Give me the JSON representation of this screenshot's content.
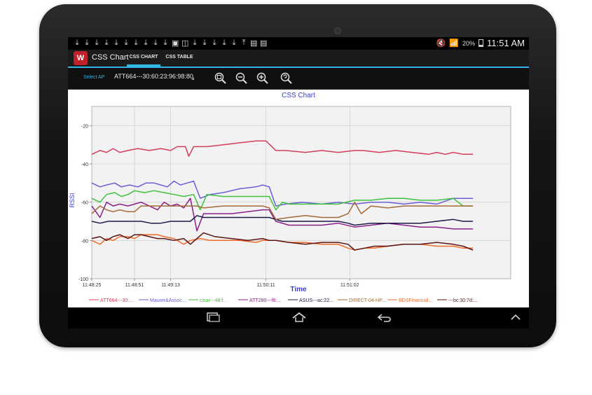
{
  "status_bar": {
    "notification_icons": [
      "download-icon",
      "download-icon",
      "download-icon",
      "download-icon",
      "download-icon",
      "download-icon",
      "download-icon",
      "download-icon",
      "download-icon",
      "download-icon",
      "image-icon",
      "screenshot-icon",
      "download-icon",
      "download-icon",
      "download-icon",
      "download-icon",
      "download-icon",
      "upload-icon",
      "briefcase-icon",
      "briefcase-icon"
    ],
    "battery_percent": "20%",
    "time": "11:51 AM"
  },
  "action_bar": {
    "app_title": "CSS Chart",
    "tabs": [
      {
        "label": "CSS CHART",
        "active": true
      },
      {
        "label": "CSS TABLE",
        "active": false
      }
    ],
    "accent_color": "#33b5e5"
  },
  "toolbar": {
    "select_label": "Select AP",
    "selected_ap": "ATT664---30:60:23:96:98:80",
    "zoom_buttons": [
      "zoom-fit-icon",
      "zoom-out-icon",
      "zoom-in-icon",
      "zoom-reset-icon"
    ]
  },
  "chart_data": {
    "type": "line",
    "title": "CSS Chart",
    "xlabel": "Time",
    "ylabel": "RSSI",
    "ylim": [
      -100,
      -10
    ],
    "yticks": [
      -20,
      -40,
      -60,
      -80,
      -100
    ],
    "xlim": [
      0,
      255
    ],
    "xticks": [
      {
        "label": "11:48:25",
        "x": 0
      },
      {
        "label": "11:48:51",
        "x": 26
      },
      {
        "label": "11:49:13",
        "x": 48
      },
      {
        "label": "11:50:11",
        "x": 106
      },
      {
        "label": "11:51:02",
        "x": 157
      }
    ],
    "grid": true,
    "legend_position": "bottom",
    "series": [
      {
        "name": "ATT664---30:...",
        "color": "#d43d5e",
        "points": [
          [
            0,
            -35
          ],
          [
            5,
            -33
          ],
          [
            9,
            -34
          ],
          [
            13,
            -32
          ],
          [
            17,
            -34
          ],
          [
            22,
            -33
          ],
          [
            28,
            -32
          ],
          [
            35,
            -33
          ],
          [
            42,
            -32
          ],
          [
            48,
            -33
          ],
          [
            52,
            -31
          ],
          [
            57,
            -31
          ],
          [
            59,
            -36
          ],
          [
            62,
            -31
          ],
          [
            70,
            -31
          ],
          [
            80,
            -30
          ],
          [
            90,
            -29
          ],
          [
            100,
            -28
          ],
          [
            106,
            -28
          ],
          [
            112,
            -33
          ],
          [
            118,
            -33
          ],
          [
            130,
            -34
          ],
          [
            140,
            -33
          ],
          [
            150,
            -34
          ],
          [
            160,
            -33
          ],
          [
            165,
            -33
          ],
          [
            175,
            -34
          ],
          [
            185,
            -33
          ],
          [
            195,
            -34
          ],
          [
            205,
            -35
          ],
          [
            210,
            -34
          ],
          [
            215,
            -35
          ],
          [
            220,
            -34
          ],
          [
            226,
            -35
          ],
          [
            232,
            -35
          ]
        ]
      },
      {
        "name": "Maurer&Assoc...",
        "color": "#6a5fd8",
        "points": [
          [
            0,
            -50
          ],
          [
            5,
            -52
          ],
          [
            9,
            -51
          ],
          [
            14,
            -50
          ],
          [
            18,
            -52
          ],
          [
            23,
            -51
          ],
          [
            28,
            -52
          ],
          [
            33,
            -50
          ],
          [
            38,
            -50
          ],
          [
            42,
            -51
          ],
          [
            46,
            -52
          ],
          [
            50,
            -49
          ],
          [
            54,
            -51
          ],
          [
            58,
            -50
          ],
          [
            62,
            -49
          ],
          [
            66,
            -58
          ],
          [
            72,
            -56
          ],
          [
            80,
            -55
          ],
          [
            90,
            -53
          ],
          [
            100,
            -52
          ],
          [
            104,
            -51
          ],
          [
            108,
            -52
          ],
          [
            112,
            -62
          ],
          [
            118,
            -61
          ],
          [
            128,
            -60
          ],
          [
            140,
            -61
          ],
          [
            150,
            -60
          ],
          [
            160,
            -61
          ],
          [
            170,
            -60
          ],
          [
            180,
            -60
          ],
          [
            190,
            -61
          ],
          [
            200,
            -60
          ],
          [
            210,
            -61
          ],
          [
            220,
            -58
          ],
          [
            228,
            -58
          ],
          [
            232,
            -58
          ]
        ]
      },
      {
        "name": "cisar---48:f...",
        "color": "#3ec23e",
        "points": [
          [
            0,
            -58
          ],
          [
            5,
            -60
          ],
          [
            9,
            -56
          ],
          [
            14,
            -55
          ],
          [
            18,
            -57
          ],
          [
            22,
            -56
          ],
          [
            26,
            -54
          ],
          [
            32,
            -55
          ],
          [
            38,
            -54
          ],
          [
            44,
            -55
          ],
          [
            50,
            -56
          ],
          [
            56,
            -57
          ],
          [
            62,
            -56
          ],
          [
            66,
            -64
          ],
          [
            70,
            -56
          ],
          [
            80,
            -57
          ],
          [
            90,
            -57
          ],
          [
            100,
            -57
          ],
          [
            104,
            -57
          ],
          [
            108,
            -57
          ],
          [
            112,
            -64
          ],
          [
            116,
            -60
          ],
          [
            120,
            -61
          ],
          [
            130,
            -61
          ],
          [
            140,
            -61
          ],
          [
            150,
            -61
          ],
          [
            160,
            -59
          ],
          [
            170,
            -59
          ],
          [
            180,
            -58
          ],
          [
            190,
            -58
          ],
          [
            200,
            -59
          ],
          [
            210,
            -59
          ],
          [
            220,
            -58
          ],
          [
            226,
            -62
          ],
          [
            232,
            -62
          ]
        ]
      },
      {
        "name": "ATT280---f8:...",
        "color": "#8a1f8a",
        "points": [
          [
            0,
            -62
          ],
          [
            5,
            -68
          ],
          [
            9,
            -60
          ],
          [
            13,
            -62
          ],
          [
            17,
            -61
          ],
          [
            22,
            -62
          ],
          [
            26,
            -61
          ],
          [
            30,
            -60
          ],
          [
            35,
            -62
          ],
          [
            40,
            -64
          ],
          [
            44,
            -60
          ],
          [
            48,
            -62
          ],
          [
            52,
            -61
          ],
          [
            56,
            -63
          ],
          [
            60,
            -58
          ],
          [
            64,
            -75
          ],
          [
            68,
            -66
          ],
          [
            75,
            -66
          ],
          [
            85,
            -66
          ],
          [
            95,
            -65
          ],
          [
            104,
            -64
          ],
          [
            108,
            -64
          ],
          [
            112,
            -70
          ],
          [
            120,
            -72
          ],
          [
            130,
            -72
          ],
          [
            140,
            -72
          ],
          [
            150,
            -71
          ],
          [
            160,
            -73
          ],
          [
            170,
            -72
          ],
          [
            180,
            -71
          ],
          [
            190,
            -72
          ],
          [
            200,
            -73
          ],
          [
            210,
            -73
          ],
          [
            220,
            -74
          ],
          [
            228,
            -74
          ],
          [
            232,
            -74
          ]
        ]
      },
      {
        "name": "ASUS---ac:22...",
        "color": "#1b1b4a",
        "points": [
          [
            0,
            -70
          ],
          [
            5,
            -71
          ],
          [
            10,
            -70
          ],
          [
            16,
            -70
          ],
          [
            22,
            -70
          ],
          [
            30,
            -70
          ],
          [
            36,
            -71
          ],
          [
            42,
            -71
          ],
          [
            48,
            -70
          ],
          [
            54,
            -70
          ],
          [
            60,
            -70
          ],
          [
            64,
            -67
          ],
          [
            68,
            -68
          ],
          [
            80,
            -68
          ],
          [
            90,
            -68
          ],
          [
            100,
            -68
          ],
          [
            104,
            -68
          ],
          [
            108,
            -68
          ],
          [
            112,
            -69
          ],
          [
            116,
            -70
          ],
          [
            124,
            -70
          ],
          [
            134,
            -70
          ],
          [
            144,
            -70
          ],
          [
            150,
            -70
          ],
          [
            156,
            -71
          ],
          [
            160,
            -72
          ],
          [
            170,
            -71
          ],
          [
            180,
            -71
          ],
          [
            190,
            -71
          ],
          [
            200,
            -71
          ],
          [
            210,
            -70
          ],
          [
            220,
            -69
          ],
          [
            226,
            -70
          ],
          [
            232,
            -70
          ]
        ]
      },
      {
        "name": "DIRECT-04-HP...",
        "color": "#a46a3a",
        "points": [
          [
            0,
            -66
          ],
          [
            5,
            -62
          ],
          [
            9,
            -64
          ],
          [
            13,
            -65
          ],
          [
            17,
            -64
          ],
          [
            22,
            -65
          ],
          [
            26,
            -65
          ],
          [
            30,
            -62
          ],
          [
            36,
            -62
          ],
          [
            42,
            -62
          ],
          [
            48,
            -62
          ],
          [
            52,
            -62
          ],
          [
            56,
            -62
          ],
          [
            60,
            -62
          ],
          [
            64,
            -62
          ],
          [
            68,
            -63
          ],
          [
            80,
            -62
          ],
          [
            90,
            -62
          ],
          [
            100,
            -62
          ],
          [
            104,
            -62
          ],
          [
            108,
            -63
          ],
          [
            112,
            -69
          ],
          [
            120,
            -68
          ],
          [
            130,
            -67
          ],
          [
            140,
            -68
          ],
          [
            150,
            -68
          ],
          [
            156,
            -66
          ],
          [
            160,
            -60
          ],
          [
            164,
            -66
          ],
          [
            170,
            -62
          ],
          [
            180,
            -63
          ],
          [
            190,
            -62
          ],
          [
            200,
            -62
          ],
          [
            210,
            -62
          ],
          [
            220,
            -62
          ],
          [
            226,
            -62
          ],
          [
            232,
            -62
          ]
        ]
      },
      {
        "name": "BDSFinancial...",
        "color": "#f06a2a",
        "points": [
          [
            0,
            -80
          ],
          [
            5,
            -82
          ],
          [
            9,
            -79
          ],
          [
            13,
            -80
          ],
          [
            17,
            -78
          ],
          [
            22,
            -78
          ],
          [
            26,
            -79
          ],
          [
            30,
            -77
          ],
          [
            35,
            -77
          ],
          [
            40,
            -77
          ],
          [
            44,
            -78
          ],
          [
            50,
            -79
          ],
          [
            56,
            -82
          ],
          [
            60,
            -80
          ],
          [
            66,
            -79
          ],
          [
            72,
            -80
          ],
          [
            80,
            -80
          ],
          [
            90,
            -80
          ],
          [
            100,
            -81
          ],
          [
            104,
            -80
          ],
          [
            108,
            -80
          ],
          [
            112,
            -80
          ],
          [
            120,
            -81
          ],
          [
            130,
            -81
          ],
          [
            140,
            -82
          ],
          [
            150,
            -82
          ],
          [
            156,
            -84
          ],
          [
            160,
            -85
          ],
          [
            166,
            -84
          ],
          [
            172,
            -84
          ],
          [
            180,
            -83
          ],
          [
            190,
            -82
          ],
          [
            200,
            -82
          ],
          [
            210,
            -83
          ],
          [
            220,
            -83
          ],
          [
            226,
            -84
          ],
          [
            232,
            -84
          ]
        ]
      },
      {
        "name": "---bc:30:7d:...",
        "color": "#5a1515",
        "points": [
          [
            0,
            -79
          ],
          [
            5,
            -78
          ],
          [
            9,
            -80
          ],
          [
            13,
            -78
          ],
          [
            17,
            -77
          ],
          [
            22,
            -79
          ],
          [
            26,
            -77
          ],
          [
            30,
            -77
          ],
          [
            35,
            -78
          ],
          [
            40,
            -79
          ],
          [
            44,
            -79
          ],
          [
            50,
            -80
          ],
          [
            56,
            -79
          ],
          [
            60,
            -82
          ],
          [
            64,
            -79
          ],
          [
            68,
            -76
          ],
          [
            75,
            -78
          ],
          [
            85,
            -79
          ],
          [
            95,
            -80
          ],
          [
            104,
            -79
          ],
          [
            108,
            -80
          ],
          [
            112,
            -80
          ],
          [
            120,
            -81
          ],
          [
            130,
            -82
          ],
          [
            140,
            -81
          ],
          [
            150,
            -81
          ],
          [
            156,
            -82
          ],
          [
            160,
            -85
          ],
          [
            166,
            -84
          ],
          [
            172,
            -83
          ],
          [
            180,
            -83
          ],
          [
            190,
            -82
          ],
          [
            200,
            -82
          ],
          [
            210,
            -81
          ],
          [
            220,
            -82
          ],
          [
            226,
            -83
          ],
          [
            232,
            -85
          ]
        ]
      }
    ]
  }
}
